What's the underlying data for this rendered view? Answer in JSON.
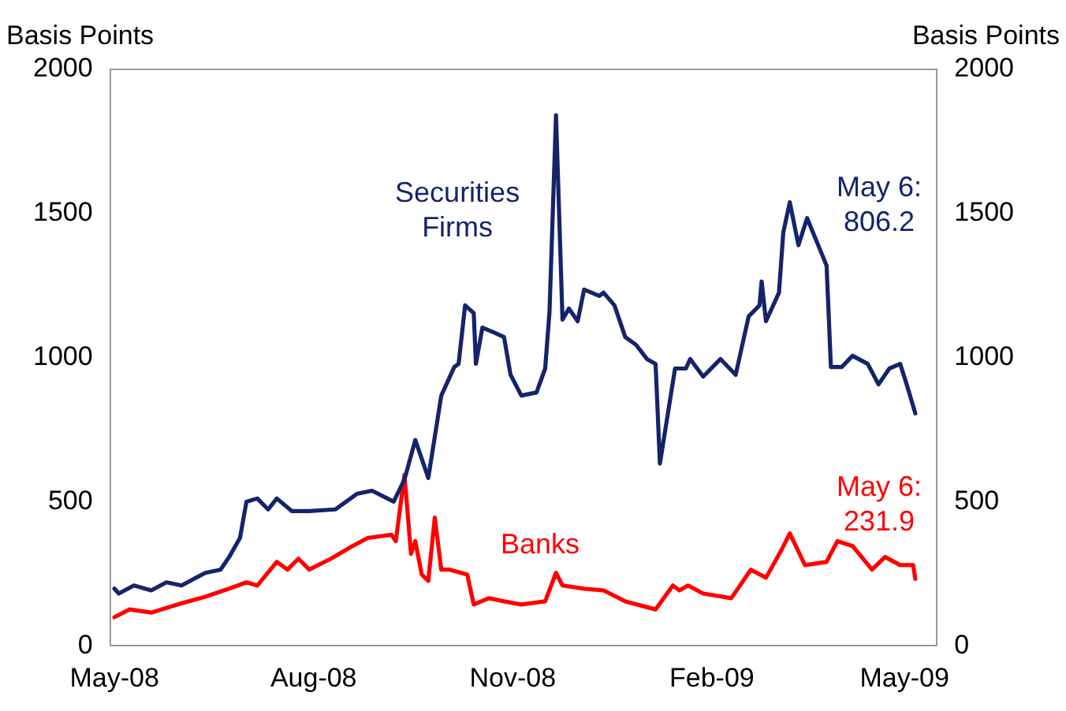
{
  "chart_data": {
    "type": "line",
    "ylabel": "Basis Points",
    "y2label": "Basis Points",
    "xlim": [
      "2008-04-29",
      "2009-05-16"
    ],
    "xticks": [
      {
        "value": "2008-05-01",
        "label": "May-08"
      },
      {
        "value": "2008-08-01",
        "label": "Aug-08"
      },
      {
        "value": "2008-11-01",
        "label": "Nov-08"
      },
      {
        "value": "2009-02-01",
        "label": "Feb-09"
      },
      {
        "value": "2009-05-01",
        "label": "May-09"
      }
    ],
    "ylim": [
      0,
      2000
    ],
    "yticks": [
      0,
      500,
      1000,
      1500,
      2000
    ],
    "y2lim": [
      0,
      2000
    ],
    "y2ticks": [
      0,
      500,
      1000,
      1500,
      2000
    ],
    "grid": false,
    "legend": false,
    "marker": "none",
    "line_style": "solid",
    "series": [
      {
        "name": "Securities Firms",
        "color": "#15246a",
        "x": [
          "2008-05-01",
          "2008-05-03",
          "2008-05-10",
          "2008-05-18",
          "2008-05-25",
          "2008-06-01",
          "2008-06-12",
          "2008-06-19",
          "2008-06-23",
          "2008-06-28",
          "2008-07-01",
          "2008-07-06",
          "2008-07-11",
          "2008-07-15",
          "2008-07-22",
          "2008-07-30",
          "2008-08-11",
          "2008-08-21",
          "2008-08-28",
          "2008-09-07",
          "2008-09-12",
          "2008-09-17",
          "2008-09-23",
          "2008-09-29",
          "2008-10-05",
          "2008-10-07",
          "2008-10-10",
          "2008-10-14",
          "2008-10-15",
          "2008-10-18",
          "2008-10-23",
          "2008-10-28",
          "2008-10-31",
          "2008-11-05",
          "2008-11-12",
          "2008-11-16",
          "2008-11-18",
          "2008-11-21",
          "2008-11-24",
          "2008-11-27",
          "2008-12-01",
          "2008-12-04",
          "2008-12-11",
          "2008-12-13",
          "2008-12-18",
          "2008-12-23",
          "2008-12-28",
          "2009-01-02",
          "2009-01-06",
          "2009-01-08",
          "2009-01-15",
          "2009-01-20",
          "2009-01-22",
          "2009-01-28",
          "2009-02-05",
          "2009-02-12",
          "2009-02-18",
          "2009-02-23",
          "2009-02-24",
          "2009-02-26",
          "2009-03-04",
          "2009-03-06",
          "2009-03-09",
          "2009-03-13",
          "2009-03-17",
          "2009-03-23",
          "2009-03-26",
          "2009-03-28",
          "2009-04-02",
          "2009-04-07",
          "2009-04-14",
          "2009-04-19",
          "2009-04-24",
          "2009-04-29",
          "2009-05-02",
          "2009-05-06"
        ],
        "values": [
          198,
          181,
          209,
          192,
          220,
          209,
          253,
          264,
          308,
          374,
          500,
          511,
          473,
          511,
          467,
          467,
          473,
          527,
          538,
          500,
          577,
          714,
          582,
          868,
          967,
          978,
          1181,
          1154,
          978,
          1104,
          1088,
          1071,
          940,
          868,
          879,
          962,
          1159,
          1841,
          1132,
          1170,
          1126,
          1236,
          1214,
          1225,
          1181,
          1071,
          1044,
          995,
          978,
          632,
          962,
          962,
          995,
          934,
          995,
          940,
          1143,
          1181,
          1264,
          1126,
          1225,
          1434,
          1539,
          1390,
          1484,
          1374,
          1319,
          967,
          967,
          1006,
          978,
          907,
          962,
          978,
          907,
          806.2
        ]
      },
      {
        "name": "Banks",
        "color": "#ff0000",
        "x": [
          "2008-05-01",
          "2008-05-08",
          "2008-05-18",
          "2008-05-30",
          "2008-06-12",
          "2008-06-23",
          "2008-07-01",
          "2008-07-06",
          "2008-07-15",
          "2008-07-20",
          "2008-07-25",
          "2008-07-30",
          "2008-08-09",
          "2008-08-19",
          "2008-08-26",
          "2008-09-06",
          "2008-09-08",
          "2008-09-12",
          "2008-09-15",
          "2008-09-17",
          "2008-09-20",
          "2008-09-23",
          "2008-09-26",
          "2008-09-29",
          "2008-10-03",
          "2008-10-11",
          "2008-10-14",
          "2008-10-21",
          "2008-10-28",
          "2008-11-05",
          "2008-11-16",
          "2008-11-21",
          "2008-11-24",
          "2008-12-04",
          "2008-12-13",
          "2008-12-23",
          "2009-01-06",
          "2009-01-14",
          "2009-01-17",
          "2009-01-21",
          "2009-01-28",
          "2009-02-10",
          "2009-02-19",
          "2009-02-26",
          "2009-03-05",
          "2009-03-09",
          "2009-03-16",
          "2009-03-26",
          "2009-03-31",
          "2009-04-07",
          "2009-04-16",
          "2009-04-22",
          "2009-04-29",
          "2009-05-05",
          "2009-05-06"
        ],
        "values": [
          99,
          126,
          115,
          143,
          170,
          198,
          220,
          209,
          291,
          264,
          302,
          264,
          302,
          346,
          374,
          385,
          363,
          593,
          319,
          363,
          247,
          225,
          445,
          264,
          264,
          247,
          143,
          165,
          154,
          143,
          154,
          253,
          209,
          198,
          192,
          154,
          126,
          209,
          192,
          209,
          181,
          165,
          264,
          236,
          330,
          390,
          280,
          291,
          363,
          346,
          264,
          308,
          280,
          280,
          231.9
        ]
      }
    ],
    "annotations": [
      "May 6: 806.2",
      "May 6: 231.9"
    ]
  }
}
